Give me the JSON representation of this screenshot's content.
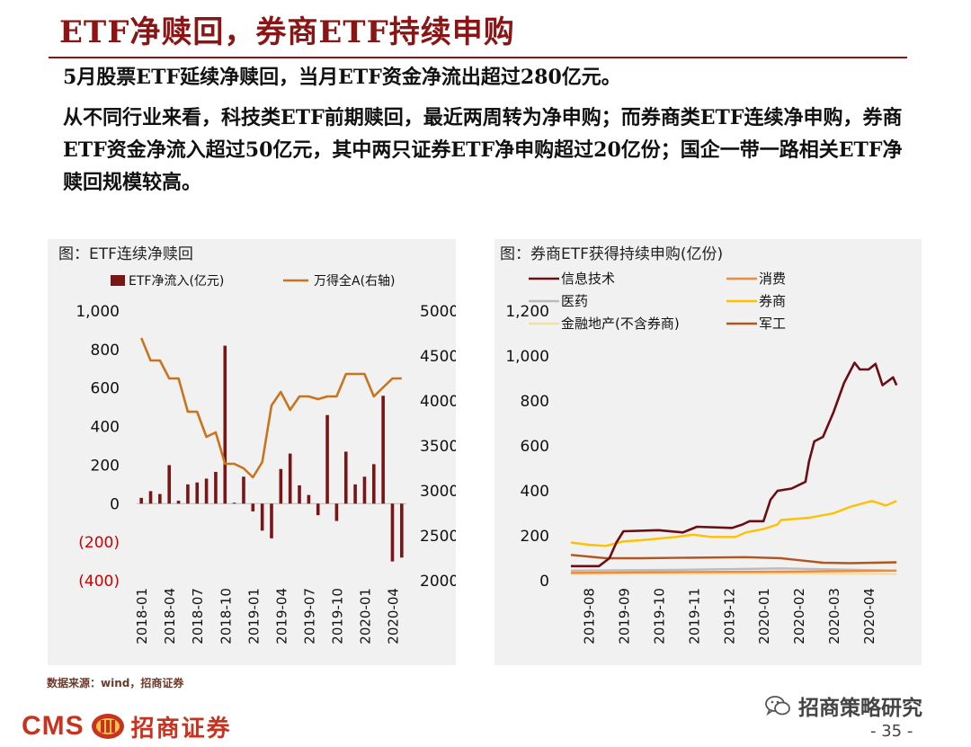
{
  "header": {
    "title": "ETF净赎回，券商ETF持续申购",
    "paragraph_1": "5月股票ETF延续净赎回，当月ETF资金净流出超过280亿元。",
    "paragraph_2": "从不同行业来看，科技类ETF前期赎回，最近两周转为净申购；而券商类ETF连续净申购，券商ETF资金净流入超过50亿元，其中两只证券ETF净申购超过20亿份；国企一带一路相关ETF净赎回规模较高。"
  },
  "footer": {
    "source": "数据来源：wind，招商证券",
    "logo_text": "CMS",
    "logo_cn": "招商证券",
    "wechat_name": "招商策略研究",
    "page_number": "- 35 -"
  },
  "colors": {
    "bar": "#7a1515",
    "line": "#c8741e",
    "negative_label": "#cc0000",
    "it": "#6b0d14",
    "consumer": "#f08a3c",
    "pharma": "#bbbbbb",
    "broker": "#ffc000",
    "finance": "#f4dfa3",
    "military": "#b4551e"
  },
  "chart_data": [
    {
      "type": "bar+line",
      "title": "图：ETF连续净赎回",
      "legend": [
        "ETF净流入(亿元)",
        "万得全A(右轴)"
      ],
      "yleft_ticks": [
        "1,000",
        "800",
        "600",
        "400",
        "200",
        "0",
        "(200)",
        "(400)"
      ],
      "yleft_ticks_values": [
        1000,
        800,
        600,
        400,
        200,
        0,
        -200,
        -400
      ],
      "yleft_range": [
        -400,
        1000
      ],
      "yright_ticks": [
        "5000",
        "4500",
        "4000",
        "3500",
        "3000",
        "2500",
        "2000"
      ],
      "yright_ticks_values": [
        5000,
        4500,
        4000,
        3500,
        3000,
        2500,
        2000
      ],
      "yright_range": [
        2000,
        5000
      ],
      "x_tick_labels": [
        "2018-01",
        "2018-04",
        "2018-07",
        "2018-10",
        "2019-01",
        "2019-04",
        "2019-07",
        "2019-10",
        "2020-01",
        "2020-04"
      ],
      "bar_values": [
        30,
        65,
        50,
        200,
        15,
        100,
        110,
        130,
        165,
        820,
        5,
        140,
        -40,
        -140,
        -180,
        180,
        260,
        95,
        45,
        -60,
        460,
        -90,
        270,
        100,
        140,
        205,
        560,
        -300,
        -280
      ],
      "line_values": [
        4700,
        4450,
        4450,
        4250,
        4250,
        3880,
        3880,
        3600,
        3650,
        3300,
        3300,
        3250,
        3150,
        3320,
        3950,
        4100,
        3900,
        4050,
        4050,
        4020,
        4050,
        4050,
        4300,
        4300,
        4300,
        4050,
        4150,
        4250,
        4250
      ]
    },
    {
      "type": "line",
      "title": "图：券商ETF获得持续申购(亿份)",
      "y_ticks": [
        "1,200",
        "1,000",
        "800",
        "600",
        "400",
        "200",
        "0"
      ],
      "y_ticks_values": [
        1200,
        1000,
        800,
        600,
        400,
        200,
        0
      ],
      "y_range": [
        0,
        1200
      ],
      "x_tick_labels": [
        "2019-08",
        "2019-09",
        "2019-10",
        "2019-11",
        "2019-12",
        "2020-01",
        "2020-02",
        "2020-03",
        "2020-04"
      ],
      "x_range": [
        0,
        9.5
      ],
      "series": [
        {
          "name": "信息技术",
          "color_key": "it",
          "points": [
            [
              0,
              65
            ],
            [
              0.8,
              65
            ],
            [
              1.1,
              100
            ],
            [
              1.3,
              170
            ],
            [
              1.5,
              220
            ],
            [
              2.5,
              225
            ],
            [
              3.2,
              215
            ],
            [
              3.6,
              240
            ],
            [
              4.6,
              235
            ],
            [
              4.9,
              250
            ],
            [
              5.1,
              265
            ],
            [
              5.5,
              265
            ],
            [
              5.7,
              360
            ],
            [
              5.9,
              400
            ],
            [
              6.3,
              410
            ],
            [
              6.7,
              440
            ],
            [
              6.8,
              530
            ],
            [
              6.95,
              620
            ],
            [
              7.2,
              640
            ],
            [
              7.5,
              750
            ],
            [
              7.8,
              880
            ],
            [
              8.1,
              970
            ],
            [
              8.25,
              940
            ],
            [
              8.5,
              940
            ],
            [
              8.7,
              965
            ],
            [
              8.9,
              870
            ],
            [
              9.2,
              905
            ],
            [
              9.3,
              870
            ]
          ]
        },
        {
          "name": "消费",
          "color_key": "consumer",
          "points": [
            [
              0,
              35
            ],
            [
              3,
              38
            ],
            [
              6,
              40
            ],
            [
              9.3,
              45
            ]
          ]
        },
        {
          "name": "医药",
          "color_key": "pharma",
          "points": [
            [
              0,
              45
            ],
            [
              3,
              48
            ],
            [
              6,
              55
            ],
            [
              9.3,
              45
            ]
          ]
        },
        {
          "name": "券商",
          "color_key": "broker",
          "points": [
            [
              0,
              170
            ],
            [
              0.5,
              160
            ],
            [
              1,
              155
            ],
            [
              1.5,
              175
            ],
            [
              2,
              180
            ],
            [
              3,
              195
            ],
            [
              3.5,
              205
            ],
            [
              4,
              195
            ],
            [
              4.7,
              195
            ],
            [
              5,
              215
            ],
            [
              5.5,
              230
            ],
            [
              5.9,
              250
            ],
            [
              6,
              270
            ],
            [
              6.8,
              280
            ],
            [
              7.5,
              300
            ],
            [
              8,
              330
            ],
            [
              8.6,
              355
            ],
            [
              8.8,
              345
            ],
            [
              9,
              335
            ],
            [
              9.3,
              355
            ]
          ]
        },
        {
          "name": "金融地产(不含券商)",
          "color_key": "finance",
          "points": [
            [
              0,
              30
            ],
            [
              3,
              30
            ],
            [
              6,
              32
            ],
            [
              9.3,
              30
            ]
          ]
        },
        {
          "name": "军工",
          "color_key": "military",
          "points": [
            [
              0,
              115
            ],
            [
              1,
              100
            ],
            [
              2,
              100
            ],
            [
              5,
              105
            ],
            [
              6,
              100
            ],
            [
              7.2,
              80
            ],
            [
              8,
              78
            ],
            [
              9.3,
              82
            ]
          ]
        }
      ]
    }
  ]
}
